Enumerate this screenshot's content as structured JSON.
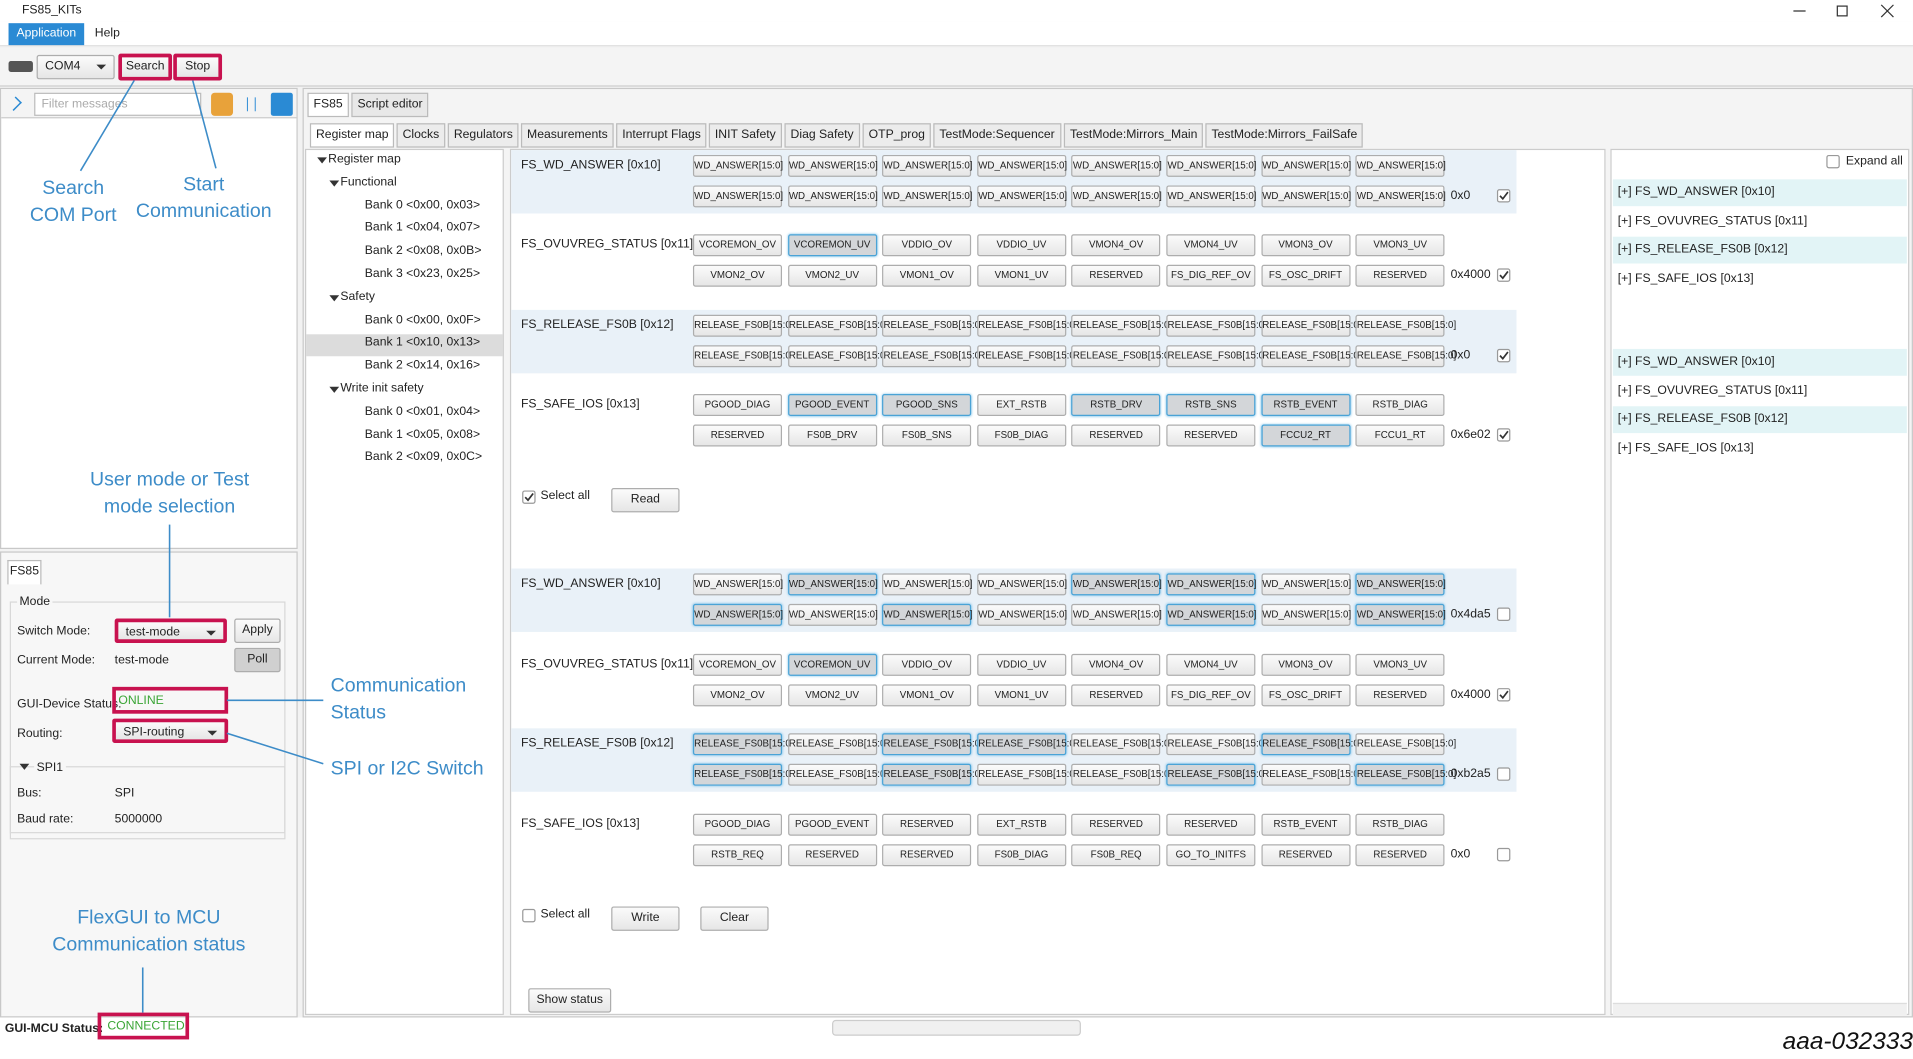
{
  "window": {
    "title": "FS85_KITs"
  },
  "menu": [
    "Application",
    "Help"
  ],
  "toolbar": {
    "port": "COM4",
    "search": "Search",
    "stop": "Stop"
  },
  "console": {
    "filter_placeholder": "Filter messages"
  },
  "device_panel": {
    "tab": "FS85",
    "mode_group": "Mode",
    "switch_mode_label": "Switch Mode:",
    "switch_mode_value": "test-mode",
    "apply": "Apply",
    "current_mode_label": "Current Mode:",
    "current_mode_value": "test-mode",
    "poll": "Poll",
    "status_label": "GUI-Device Status:",
    "status_value": "ONLINE",
    "routing_label": "Routing:",
    "routing_value": "SPI-routing",
    "spi_group": "SPI1",
    "bus_label": "Bus:",
    "bus_value": "SPI",
    "baud_label": "Baud rate:",
    "baud_value": "5000000"
  },
  "status_bar": {
    "label": "GUI-MCU Status:",
    "value": "CONNECTED"
  },
  "main_tabs": [
    "FS85",
    "Script editor"
  ],
  "sub_tabs": [
    "Register map",
    "Clocks",
    "Regulators",
    "Measurements",
    "Interrupt Flags",
    "INIT Safety",
    "Diag Safety",
    "OTP_prog",
    "TestMode:Sequencer",
    "TestMode:Mirrors_Main",
    "TestMode:Mirrors_FailSafe"
  ],
  "tree": [
    {
      "label": "Register map",
      "children": [
        {
          "label": "Functional",
          "children": [
            {
              "label": "Bank 0 <0x00, 0x03>"
            },
            {
              "label": "Bank 1 <0x04, 0x07>"
            },
            {
              "label": "Bank 2 <0x08, 0x0B>"
            },
            {
              "label": "Bank 3 <0x23, 0x25>"
            }
          ]
        },
        {
          "label": "Safety",
          "children": [
            {
              "label": "Bank 0 <0x00, 0x0F>"
            },
            {
              "label": "Bank 1 <0x10, 0x13>",
              "selected": true
            },
            {
              "label": "Bank 2 <0x14, 0x16>"
            }
          ]
        },
        {
          "label": "Write init safety",
          "children": [
            {
              "label": "Bank 0 <0x01, 0x04>"
            },
            {
              "label": "Bank 1 <0x05, 0x08>"
            },
            {
              "label": "Bank 2 <0x09, 0x0C>"
            }
          ]
        }
      ]
    }
  ],
  "read_panel": {
    "registers": [
      {
        "name": "FS_WD_ANSWER [0x10]",
        "bits": [
          "WD_ANSWER[15:0]",
          "WD_ANSWER[15:0]",
          "WD_ANSWER[15:0]",
          "WD_ANSWER[15:0]",
          "WD_ANSWER[15:0]",
          "WD_ANSWER[15:0]",
          "WD_ANSWER[15:0]",
          "WD_ANSWER[15:0]",
          "WD_ANSWER[15:0]",
          "WD_ANSWER[15:0]",
          "WD_ANSWER[15:0]",
          "WD_ANSWER[15:0]",
          "WD_ANSWER[15:0]",
          "WD_ANSWER[15:0]",
          "WD_ANSWER[15:0]",
          "WD_ANSWER[15:0]"
        ],
        "pressed": [
          false,
          false,
          false,
          false,
          false,
          false,
          false,
          false,
          false,
          false,
          false,
          false,
          false,
          false,
          false,
          false
        ],
        "value": "0x0",
        "checked": true
      },
      {
        "name": "FS_OVUVREG_STATUS [0x11]",
        "bits": [
          "VCOREMON_OV",
          "VCOREMON_UV",
          "VDDIO_OV",
          "VDDIO_UV",
          "VMON4_OV",
          "VMON4_UV",
          "VMON3_OV",
          "VMON3_UV",
          "VMON2_OV",
          "VMON2_UV",
          "VMON1_OV",
          "VMON1_UV",
          "RESERVED",
          "FS_DIG_REF_OV",
          "FS_OSC_DRIFT",
          "RESERVED"
        ],
        "pressed": [
          false,
          true,
          false,
          false,
          false,
          false,
          false,
          false,
          false,
          false,
          false,
          false,
          false,
          false,
          false,
          false
        ],
        "value": "0x4000",
        "checked": true
      },
      {
        "name": "FS_RELEASE_FS0B [0x12]",
        "bits": [
          "RELEASE_FS0B[15:0]",
          "RELEASE_FS0B[15:0]",
          "RELEASE_FS0B[15:0]",
          "RELEASE_FS0B[15:0]",
          "RELEASE_FS0B[15:0]",
          "RELEASE_FS0B[15:0]",
          "RELEASE_FS0B[15:0]",
          "RELEASE_FS0B[15:0]",
          "RELEASE_FS0B[15:0]",
          "RELEASE_FS0B[15:0]",
          "RELEASE_FS0B[15:0]",
          "RELEASE_FS0B[15:0]",
          "RELEASE_FS0B[15:0]",
          "RELEASE_FS0B[15:0]",
          "RELEASE_FS0B[15:0]",
          "RELEASE_FS0B[15:0]"
        ],
        "pressed": [
          false,
          false,
          false,
          false,
          false,
          false,
          false,
          false,
          false,
          false,
          false,
          false,
          false,
          false,
          false,
          false
        ],
        "value": "0x0",
        "checked": true
      },
      {
        "name": "FS_SAFE_IOS [0x13]",
        "bits": [
          "PGOOD_DIAG",
          "PGOOD_EVENT",
          "PGOOD_SNS",
          "EXT_RSTB",
          "RSTB_DRV",
          "RSTB_SNS",
          "RSTB_EVENT",
          "RSTB_DIAG",
          "RESERVED",
          "FS0B_DRV",
          "FS0B_SNS",
          "FS0B_DIAG",
          "RESERVED",
          "RESERVED",
          "FCCU2_RT",
          "FCCU1_RT"
        ],
        "pressed": [
          false,
          true,
          true,
          false,
          true,
          true,
          true,
          false,
          false,
          false,
          false,
          false,
          false,
          false,
          true,
          false
        ],
        "value": "0x6e02",
        "checked": true
      }
    ],
    "select_all": "Select all",
    "select_all_checked": true,
    "buttons": [
      "Read"
    ]
  },
  "write_panel": {
    "registers": [
      {
        "name": "FS_WD_ANSWER [0x10]",
        "bits": [
          "WD_ANSWER[15:0]",
          "WD_ANSWER[15:0]",
          "WD_ANSWER[15:0]",
          "WD_ANSWER[15:0]",
          "WD_ANSWER[15:0]",
          "WD_ANSWER[15:0]",
          "WD_ANSWER[15:0]",
          "WD_ANSWER[15:0]",
          "WD_ANSWER[15:0]",
          "WD_ANSWER[15:0]",
          "WD_ANSWER[15:0]",
          "WD_ANSWER[15:0]",
          "WD_ANSWER[15:0]",
          "WD_ANSWER[15:0]",
          "WD_ANSWER[15:0]",
          "WD_ANSWER[15:0]"
        ],
        "pressed": [
          false,
          true,
          false,
          false,
          true,
          true,
          false,
          true,
          true,
          false,
          true,
          false,
          false,
          true,
          false,
          true
        ],
        "value": "0x4da5",
        "checked": false
      },
      {
        "name": "FS_OVUVREG_STATUS [0x11]",
        "bits": [
          "VCOREMON_OV",
          "VCOREMON_UV",
          "VDDIO_OV",
          "VDDIO_UV",
          "VMON4_OV",
          "VMON4_UV",
          "VMON3_OV",
          "VMON3_UV",
          "VMON2_OV",
          "VMON2_UV",
          "VMON1_OV",
          "VMON1_UV",
          "RESERVED",
          "FS_DIG_REF_OV",
          "FS_OSC_DRIFT",
          "RESERVED"
        ],
        "pressed": [
          false,
          true,
          false,
          false,
          false,
          false,
          false,
          false,
          false,
          false,
          false,
          false,
          false,
          false,
          false,
          false
        ],
        "value": "0x4000",
        "checked": true
      },
      {
        "name": "FS_RELEASE_FS0B [0x12]",
        "bits": [
          "RELEASE_FS0B[15:0]",
          "RELEASE_FS0B[15:0]",
          "RELEASE_FS0B[15:0]",
          "RELEASE_FS0B[15:0]",
          "RELEASE_FS0B[15:0]",
          "RELEASE_FS0B[15:0]",
          "RELEASE_FS0B[15:0]",
          "RELEASE_FS0B[15:0]",
          "RELEASE_FS0B[15:0]",
          "RELEASE_FS0B[15:0]",
          "RELEASE_FS0B[15:0]",
          "RELEASE_FS0B[15:0]",
          "RELEASE_FS0B[15:0]",
          "RELEASE_FS0B[15:0]",
          "RELEASE_FS0B[15:0]",
          "RELEASE_FS0B[15:0]"
        ],
        "pressed": [
          true,
          false,
          true,
          true,
          false,
          false,
          true,
          false,
          true,
          false,
          true,
          false,
          false,
          true,
          false,
          true
        ],
        "value": "0xb2a5",
        "checked": false
      },
      {
        "name": "FS_SAFE_IOS [0x13]",
        "bits": [
          "PGOOD_DIAG",
          "PGOOD_EVENT",
          "RESERVED",
          "EXT_RSTB",
          "RESERVED",
          "RESERVED",
          "RSTB_EVENT",
          "RSTB_DIAG",
          "RSTB_REQ",
          "RESERVED",
          "RESERVED",
          "FS0B_DIAG",
          "FS0B_REQ",
          "GO_TO_INITFS",
          "RESERVED",
          "RESERVED"
        ],
        "pressed": [
          false,
          false,
          false,
          false,
          false,
          false,
          false,
          false,
          false,
          false,
          false,
          false,
          false,
          false,
          false,
          false
        ],
        "value": "0x0",
        "checked": false
      }
    ],
    "select_all": "Select all",
    "select_all_checked": false,
    "buttons": [
      "Write",
      "Clear"
    ]
  },
  "show_status": "Show status",
  "right_panel": {
    "expand_all": "Expand all",
    "items": [
      "[+] FS_WD_ANSWER [0x10]",
      "[+] FS_OVUVREG_STATUS [0x11]",
      "[+] FS_RELEASE_FS0B [0x12]",
      "[+] FS_SAFE_IOS [0x13]",
      "[+] FS_WD_ANSWER [0x10]",
      "[+] FS_OVUVREG_STATUS [0x11]",
      "[+] FS_RELEASE_FS0B [0x12]",
      "[+] FS_SAFE_IOS [0x13]"
    ]
  },
  "annotations": [
    "Search\nCOM Port",
    "Start\nCommunication",
    "User mode or Test\nmode selection",
    "Communication\nStatus",
    "SPI or I2C Switch",
    "FlexGUI to MCU\nCommunication status"
  ],
  "figure_id": "aaa-032333"
}
